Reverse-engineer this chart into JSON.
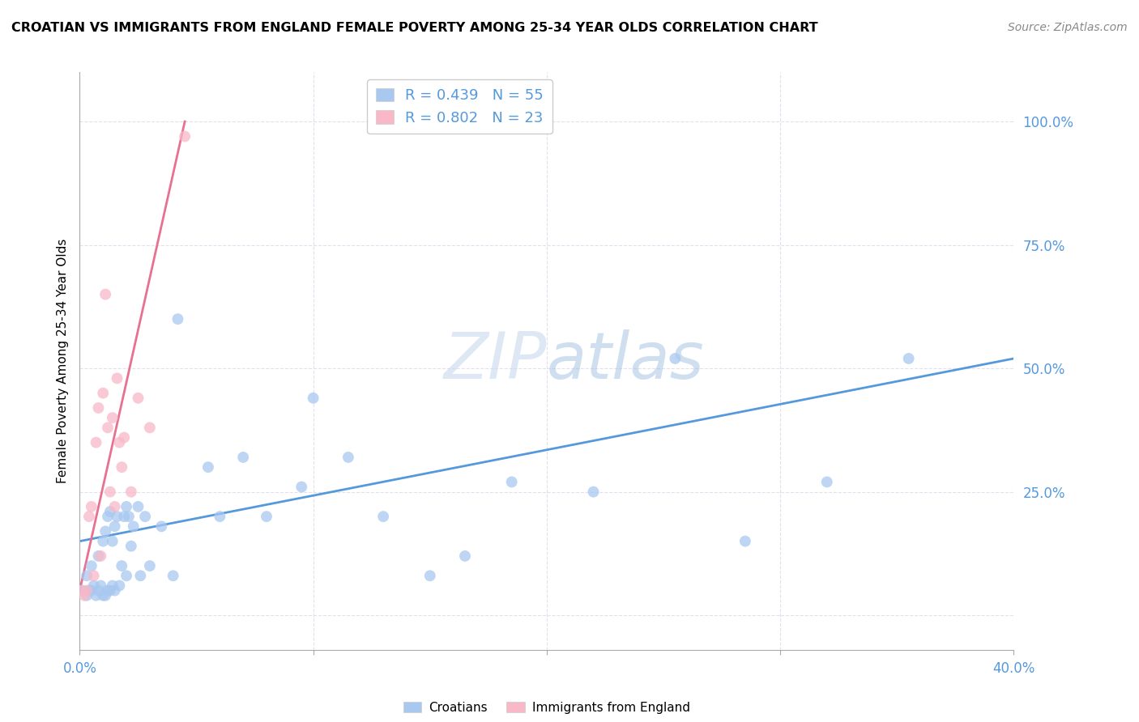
{
  "title": "CROATIAN VS IMMIGRANTS FROM ENGLAND FEMALE POVERTY AMONG 25-34 YEAR OLDS CORRELATION CHART",
  "source": "Source: ZipAtlas.com",
  "ylabel": "Female Poverty Among 25-34 Year Olds",
  "yticks": [
    0.0,
    0.25,
    0.5,
    0.75,
    1.0
  ],
  "ytick_labels": [
    "",
    "25.0%",
    "50.0%",
    "75.0%",
    "100.0%"
  ],
  "xticks": [
    0.0,
    0.1,
    0.2,
    0.3,
    0.4
  ],
  "xtick_labels": [
    "0.0%",
    "",
    "",
    "",
    "40.0%"
  ],
  "xlim": [
    0.0,
    0.4
  ],
  "ylim": [
    -0.07,
    1.1
  ],
  "watermark_zip": "ZIP",
  "watermark_atlas": "atlas",
  "legend_R1": "R = 0.439",
  "legend_N1": "N = 55",
  "legend_R2": "R = 0.802",
  "legend_N2": "N = 23",
  "croatian_color": "#A8C8F0",
  "england_color": "#F8B8C8",
  "line_color_croatian": "#5599DD",
  "line_color_england": "#E87090",
  "tick_color": "#5599DD",
  "grid_color": "#DDDDEE",
  "croatian_scatter_x": [
    0.001,
    0.003,
    0.004,
    0.005,
    0.006,
    0.007,
    0.008,
    0.008,
    0.009,
    0.01,
    0.01,
    0.011,
    0.011,
    0.012,
    0.012,
    0.013,
    0.013,
    0.014,
    0.014,
    0.015,
    0.015,
    0.016,
    0.017,
    0.018,
    0.019,
    0.02,
    0.02,
    0.021,
    0.022,
    0.023,
    0.025,
    0.026,
    0.028,
    0.03,
    0.035,
    0.04,
    0.042,
    0.055,
    0.06,
    0.07,
    0.08,
    0.095,
    0.1,
    0.115,
    0.13,
    0.15,
    0.165,
    0.185,
    0.22,
    0.255,
    0.285,
    0.32,
    0.355,
    0.005,
    0.003
  ],
  "croatian_scatter_y": [
    0.05,
    0.04,
    0.05,
    0.05,
    0.06,
    0.04,
    0.05,
    0.12,
    0.06,
    0.04,
    0.15,
    0.04,
    0.17,
    0.05,
    0.2,
    0.05,
    0.21,
    0.06,
    0.15,
    0.05,
    0.18,
    0.2,
    0.06,
    0.1,
    0.2,
    0.08,
    0.22,
    0.2,
    0.14,
    0.18,
    0.22,
    0.08,
    0.2,
    0.1,
    0.18,
    0.08,
    0.6,
    0.3,
    0.2,
    0.32,
    0.2,
    0.26,
    0.44,
    0.32,
    0.2,
    0.08,
    0.12,
    0.27,
    0.25,
    0.52,
    0.15,
    0.27,
    0.52,
    0.1,
    0.08
  ],
  "england_scatter_x": [
    0.001,
    0.002,
    0.003,
    0.004,
    0.005,
    0.006,
    0.007,
    0.008,
    0.009,
    0.01,
    0.011,
    0.012,
    0.013,
    0.014,
    0.015,
    0.016,
    0.017,
    0.018,
    0.019,
    0.022,
    0.025,
    0.03,
    0.045
  ],
  "england_scatter_y": [
    0.05,
    0.04,
    0.05,
    0.2,
    0.22,
    0.08,
    0.35,
    0.42,
    0.12,
    0.45,
    0.65,
    0.38,
    0.25,
    0.4,
    0.22,
    0.48,
    0.35,
    0.3,
    0.36,
    0.25,
    0.44,
    0.38,
    0.97
  ],
  "croatian_line_x": [
    0.0,
    0.4
  ],
  "croatian_line_y": [
    0.15,
    0.52
  ],
  "england_line_x": [
    0.0,
    0.045
  ],
  "england_line_y": [
    0.05,
    1.0
  ]
}
